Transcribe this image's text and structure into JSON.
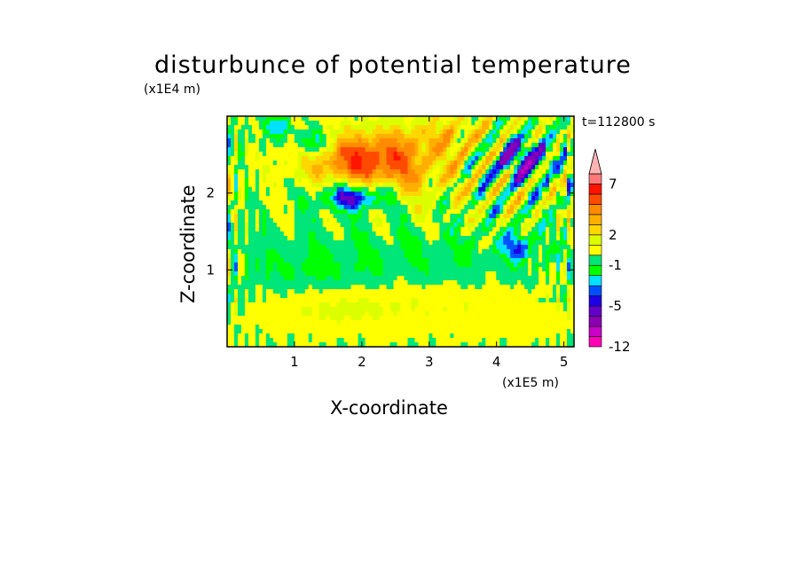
{
  "chart_data": {
    "type": "heatmap",
    "title": "disturbunce of potential temperature",
    "xlabel": "X-coordinate",
    "ylabel": "Z-coordinate",
    "x_unit": "(x1E5 m)",
    "y_unit": "(x1E4 m)",
    "annotation": "t=112800 s",
    "xlim": [
      0,
      5.15
    ],
    "ylim": [
      0,
      3.0
    ],
    "x_ticks": [
      1,
      2,
      3,
      4,
      5
    ],
    "y_ticks": [
      1,
      2
    ],
    "x_tick_labels": [
      "1",
      "2",
      "3",
      "4",
      "5"
    ],
    "y_tick_labels": [
      "1",
      "2"
    ],
    "colorbar": {
      "levels": [
        -12,
        -10,
        -8,
        -6,
        -5,
        -4,
        -3,
        -2,
        -1,
        0,
        1,
        2,
        3,
        4,
        5,
        6,
        7,
        8,
        9
      ],
      "tick_labels": [
        {
          "value": -12,
          "label": "-12"
        },
        {
          "value": -5,
          "label": "-5"
        },
        {
          "value": -1,
          "label": "-1"
        },
        {
          "value": 2,
          "label": "2"
        },
        {
          "value": 7,
          "label": "7"
        }
      ],
      "colors": [
        "#ff00b4",
        "#c800c8",
        "#8c00b4",
        "#6400c8",
        "#1e00e6",
        "#0050ff",
        "#00e1ff",
        "#00ff00",
        "#00e678",
        "#ffff00",
        "#dcff00",
        "#ffd700",
        "#ffaf00",
        "#ff8c00",
        "#ff4b00",
        "#ff1400",
        "#ff7878",
        "#ffb4b4"
      ],
      "extend": "max"
    }
  }
}
